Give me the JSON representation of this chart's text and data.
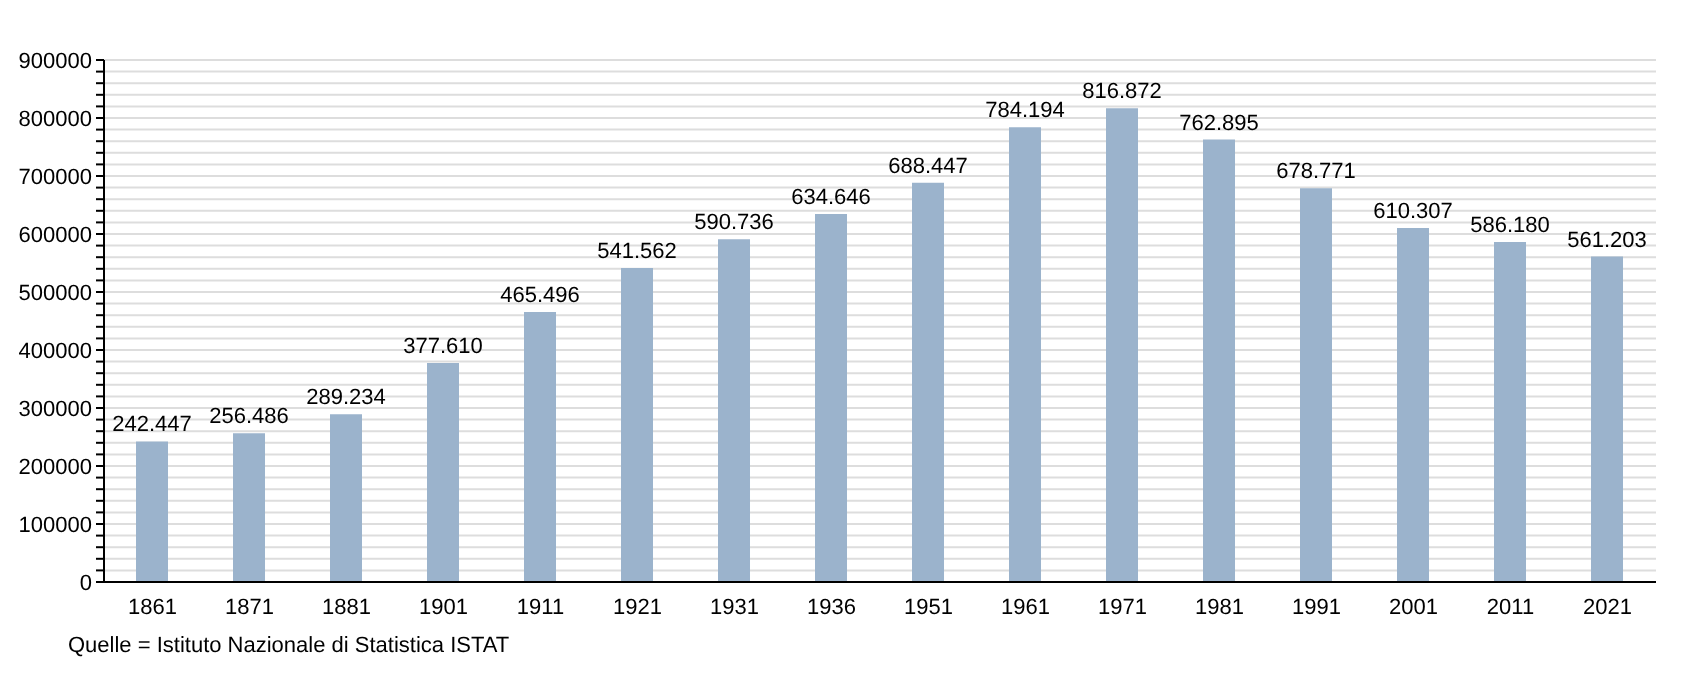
{
  "chart_data": {
    "type": "bar",
    "categories": [
      "1861",
      "1871",
      "1881",
      "1901",
      "1911",
      "1921",
      "1931",
      "1936",
      "1951",
      "1961",
      "1971",
      "1981",
      "1991",
      "2001",
      "2011",
      "2021"
    ],
    "values": [
      242447,
      256486,
      289234,
      377610,
      465496,
      541562,
      590736,
      634646,
      688447,
      784194,
      816872,
      762895,
      678771,
      610307,
      586180,
      561203
    ],
    "value_labels": [
      "242.447",
      "256.486",
      "289.234",
      "377.610",
      "465.496",
      "541.562",
      "590.736",
      "634.646",
      "688.447",
      "784.194",
      "816.872",
      "762.895",
      "678.771",
      "610.307",
      "586.180",
      "561.203"
    ],
    "color": "#9bb3cc",
    "ylim": [
      0,
      900000
    ],
    "yticks": [
      0,
      {
        "value": 20000,
        "label": null
      },
      {
        "value": 40000,
        "label": null
      },
      {
        "value": 60000,
        "label": null
      },
      {
        "value": 80000,
        "label": null
      },
      100000,
      {
        "value": 120000,
        "label": null
      },
      {
        "value": 140000,
        "label": null
      },
      {
        "value": 160000,
        "label": null
      },
      {
        "value": 180000,
        "label": null
      },
      200000,
      {
        "value": 220000,
        "label": null
      },
      {
        "value": 240000,
        "label": null
      },
      {
        "value": 260000,
        "label": null
      },
      {
        "value": 280000,
        "label": null
      },
      300000,
      {
        "value": 320000,
        "label": null
      },
      {
        "value": 340000,
        "label": null
      },
      {
        "value": 360000,
        "label": null
      },
      {
        "value": 380000,
        "label": null
      },
      400000,
      {
        "value": 420000,
        "label": null
      },
      {
        "value": 440000,
        "label": null
      },
      {
        "value": 460000,
        "label": null
      },
      {
        "value": 480000,
        "label": null
      },
      500000,
      {
        "value": 520000,
        "label": null
      },
      {
        "value": 540000,
        "label": null
      },
      {
        "value": 560000,
        "label": null
      },
      {
        "value": 580000,
        "label": null
      },
      600000,
      {
        "value": 620000,
        "label": null
      },
      {
        "value": 640000,
        "label": null
      },
      {
        "value": 660000,
        "label": null
      },
      {
        "value": 680000,
        "label": null
      },
      700000,
      {
        "value": 720000,
        "label": null
      },
      {
        "value": 740000,
        "label": null
      },
      {
        "value": 760000,
        "label": null
      },
      {
        "value": 780000,
        "label": null
      },
      800000,
      {
        "value": 820000,
        "label": null
      },
      {
        "value": 840000,
        "label": null
      },
      {
        "value": 860000,
        "label": null
      },
      {
        "value": 880000,
        "label": null
      },
      900000
    ],
    "grid": "y",
    "legend": false,
    "annotations": [
      "Quelle = Istituto Nazionale di Statistica ISTAT"
    ]
  }
}
